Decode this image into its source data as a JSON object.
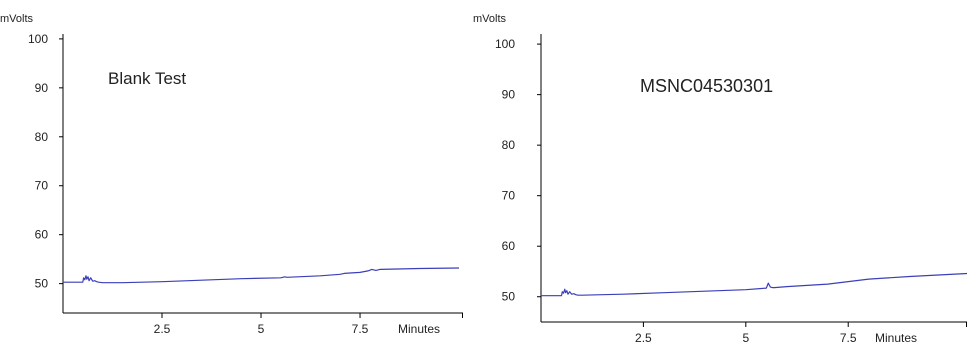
{
  "colors": {
    "trace": "#3b3fb8",
    "axis": "#000000",
    "text": "#222222"
  },
  "chart_data": [
    {
      "type": "line",
      "annotation": "Blank Test",
      "ylabel": "mVolts",
      "xlabel": "Minutes",
      "xlim": [
        0,
        10.1
      ],
      "ylim": [
        44,
        101
      ],
      "yticks": [
        50,
        60,
        70,
        80,
        90,
        100
      ],
      "yticklabels": [
        "50",
        "60",
        "70",
        "80",
        "90",
        "100"
      ],
      "xticks": [
        2.5,
        5,
        7.5
      ],
      "xticklabels": [
        "2.5",
        "5",
        "7.5"
      ],
      "series": [
        {
          "x": [
            0,
            0.5,
            0.52,
            0.55,
            0.58,
            0.6,
            0.63,
            0.66,
            0.7,
            0.75,
            0.8,
            0.85,
            0.9,
            1.0,
            1.5,
            2.5,
            3.5,
            4.5,
            5.5,
            5.6,
            5.65,
            6.5,
            7.0,
            7.1,
            7.5,
            7.7,
            7.8,
            7.9,
            8.0,
            9.0,
            10.0
          ],
          "y": [
            50.3,
            50.3,
            51.2,
            50.8,
            51.6,
            50.9,
            51.4,
            50.6,
            51.2,
            50.5,
            50.6,
            50.4,
            50.3,
            50.2,
            50.2,
            50.4,
            50.7,
            51.0,
            51.2,
            51.4,
            51.3,
            51.6,
            51.9,
            52.1,
            52.3,
            52.6,
            52.9,
            52.7,
            52.9,
            53.1,
            53.2
          ]
        }
      ]
    },
    {
      "type": "line",
      "annotation": "MSNC04530301",
      "ylabel": "mVolts",
      "xlabel": "Minutes",
      "xlim": [
        0,
        10.4
      ],
      "ylim": [
        45,
        102
      ],
      "yticks": [
        50,
        60,
        70,
        80,
        90,
        100
      ],
      "yticklabels": [
        "50",
        "60",
        "70",
        "80",
        "90",
        "100"
      ],
      "xticks": [
        2.5,
        5,
        7.5
      ],
      "xticklabels": [
        "2.5",
        "5",
        "7.5"
      ],
      "series": [
        {
          "x": [
            0,
            0.5,
            0.52,
            0.55,
            0.58,
            0.6,
            0.63,
            0.66,
            0.7,
            0.75,
            0.8,
            0.85,
            0.9,
            1.0,
            2.0,
            3.0,
            4.0,
            5.0,
            5.5,
            5.55,
            5.6,
            5.65,
            5.7,
            6.0,
            7.0,
            7.5,
            8.0,
            9.0,
            10.4
          ],
          "y": [
            50.2,
            50.2,
            51.0,
            50.7,
            51.5,
            50.8,
            51.2,
            50.5,
            51.0,
            50.5,
            50.6,
            50.4,
            50.3,
            50.3,
            50.5,
            50.8,
            51.1,
            51.4,
            51.7,
            52.7,
            51.9,
            51.8,
            51.8,
            52.0,
            52.5,
            53.0,
            53.5,
            54.0,
            54.6
          ]
        }
      ]
    }
  ]
}
